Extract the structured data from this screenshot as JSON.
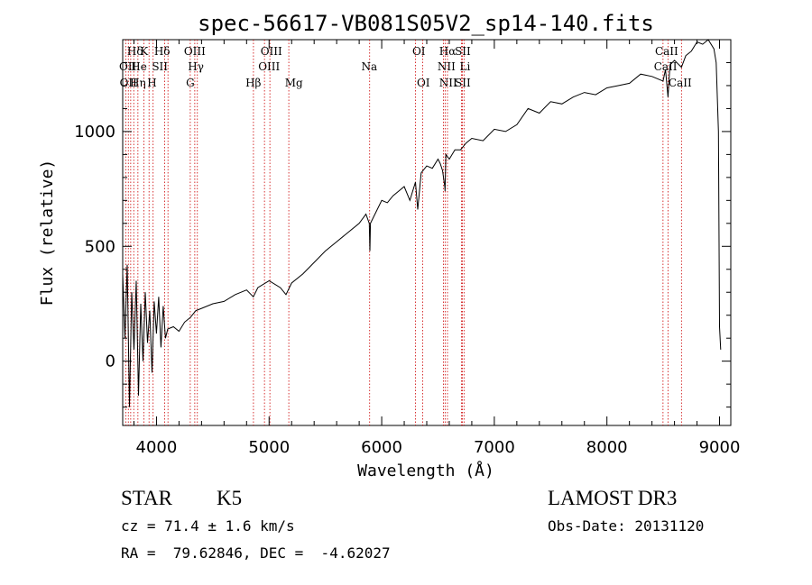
{
  "chart_data": {
    "type": "line",
    "title": "spec-56617-VB081S05V2_sp14-140.fits",
    "xlabel": "Wavelength (Å)",
    "ylabel": "Flux (relative)",
    "xlim": [
      3700,
      9100
    ],
    "ylim": [
      -280,
      1400
    ],
    "xticks": [
      4000,
      5000,
      6000,
      7000,
      8000,
      9000
    ],
    "yticks": [
      0,
      500,
      1000
    ],
    "series": [
      {
        "name": "flux",
        "x": [
          3700,
          3720,
          3740,
          3760,
          3780,
          3800,
          3820,
          3840,
          3860,
          3880,
          3900,
          3920,
          3940,
          3960,
          3980,
          4000,
          4020,
          4040,
          4060,
          4080,
          4100,
          4150,
          4200,
          4250,
          4300,
          4350,
          4400,
          4500,
          4600,
          4700,
          4800,
          4860,
          4900,
          5000,
          5100,
          5150,
          5200,
          5300,
          5400,
          5500,
          5600,
          5700,
          5800,
          5860,
          5890,
          5895,
          5900,
          5950,
          6000,
          6050,
          6100,
          6150,
          6200,
          6250,
          6300,
          6320,
          6350,
          6400,
          6450,
          6500,
          6520,
          6540,
          6560,
          6563,
          6570,
          6600,
          6650,
          6700,
          6750,
          6800,
          6900,
          7000,
          7100,
          7200,
          7300,
          7400,
          7500,
          7600,
          7700,
          7800,
          7900,
          8000,
          8100,
          8200,
          8300,
          8400,
          8498,
          8520,
          8542,
          8560,
          8600,
          8662,
          8700,
          8750,
          8800,
          8850,
          8900,
          8950,
          8970,
          8990,
          9000,
          9010
        ],
        "y": [
          380,
          100,
          420,
          -200,
          300,
          50,
          350,
          -150,
          250,
          0,
          300,
          80,
          220,
          -50,
          260,
          120,
          280,
          60,
          240,
          100,
          140,
          150,
          130,
          170,
          190,
          220,
          230,
          250,
          260,
          290,
          310,
          280,
          320,
          350,
          320,
          290,
          340,
          380,
          430,
          480,
          520,
          560,
          600,
          640,
          600,
          480,
          600,
          650,
          700,
          690,
          720,
          740,
          760,
          700,
          780,
          660,
          820,
          850,
          840,
          880,
          860,
          830,
          760,
          740,
          900,
          880,
          920,
          920,
          950,
          970,
          960,
          1010,
          1000,
          1030,
          1100,
          1080,
          1130,
          1120,
          1150,
          1170,
          1160,
          1190,
          1200,
          1210,
          1250,
          1240,
          1220,
          1270,
          1150,
          1290,
          1310,
          1280,
          1330,
          1350,
          1390,
          1380,
          1400,
          1360,
          1300,
          1000,
          150,
          50
        ]
      }
    ],
    "line_labels": {
      "row1": [
        "Hδ",
        "K",
        "Hδ",
        "OIII",
        "OIII",
        "OI",
        "Hα",
        "SII",
        "CaII"
      ],
      "row2": [
        "OII",
        "He",
        "SII",
        "Hγ",
        "OIII",
        "Na",
        "NII",
        "Li",
        "CaII"
      ],
      "row3": [
        "OII",
        "Hη",
        "H",
        "G",
        "Hβ",
        "Mg",
        "OI",
        "NII",
        "SII",
        "CaII"
      ]
    },
    "line_colors": {
      "spectrum": "#000000",
      "marker": "#cc0000"
    }
  },
  "info": {
    "class": "STAR",
    "subclass": "K5",
    "survey": "LAMOST DR3",
    "cz": "cz = 71.4 ± 1.6 km/s",
    "obs_date": "Obs-Date: 20131120",
    "coords": "RA =  79.62846, DEC =  -4.62027"
  }
}
